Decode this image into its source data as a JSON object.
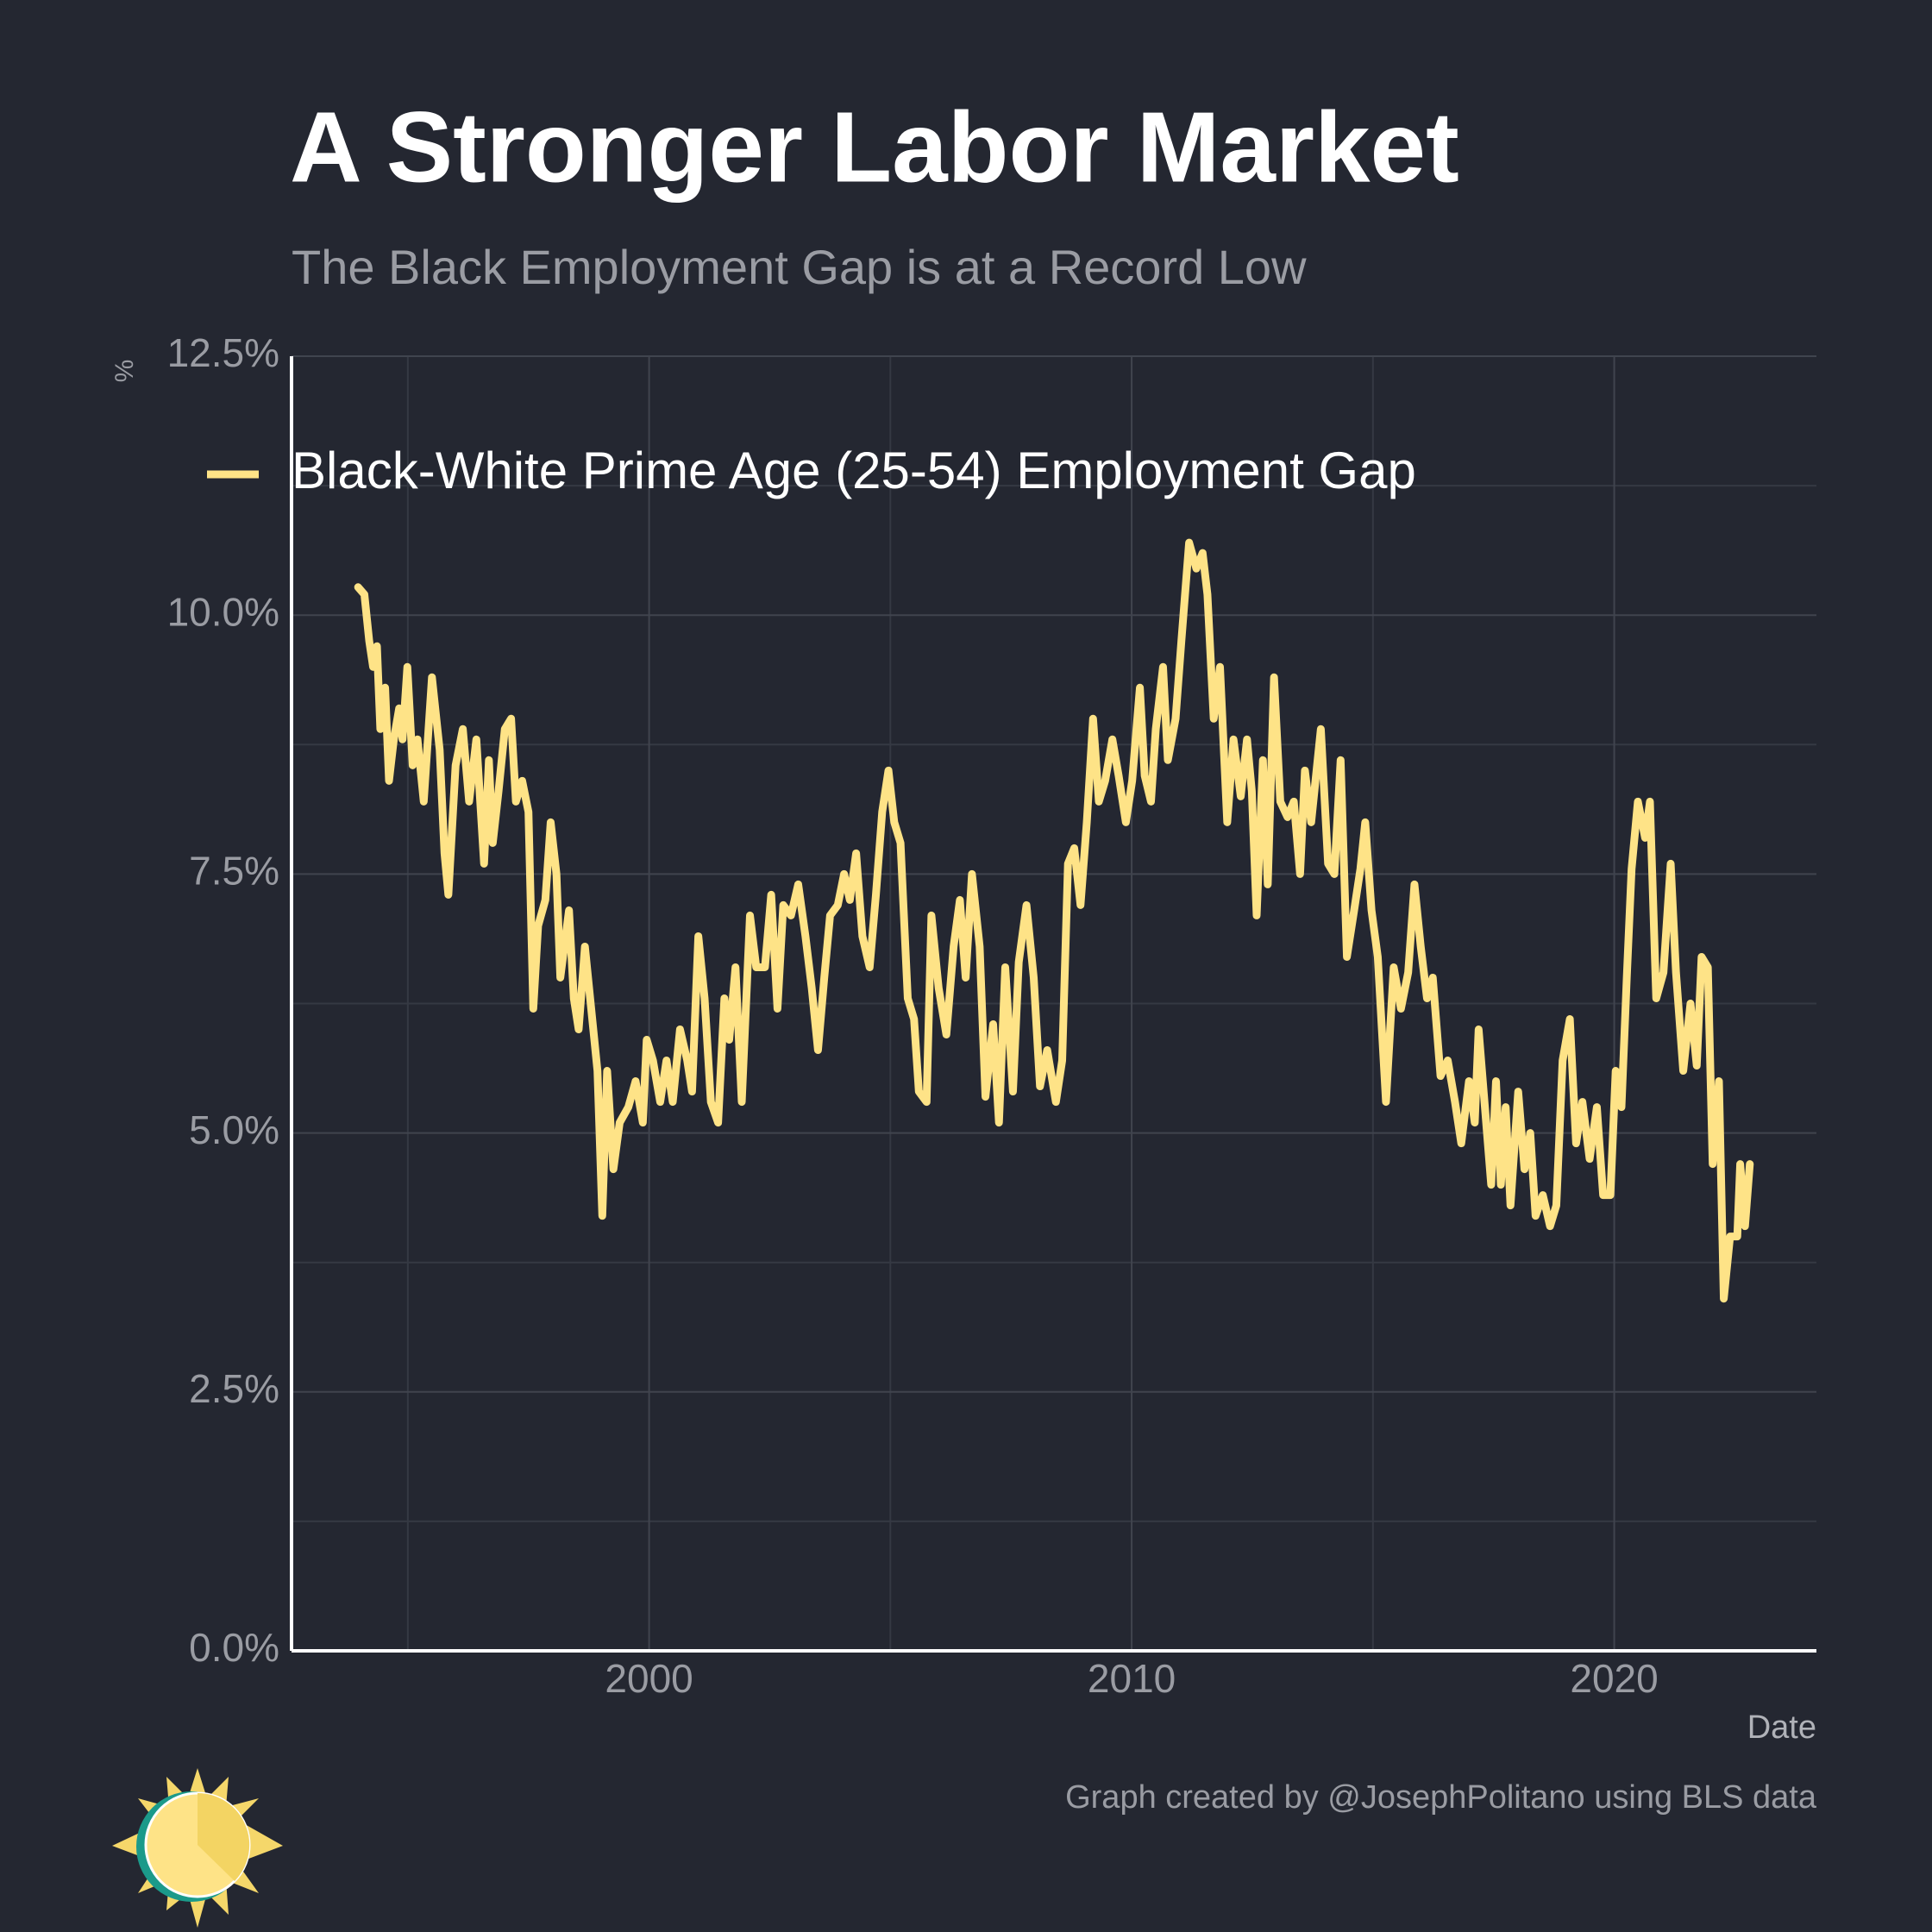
{
  "chart_data": {
    "type": "line",
    "title": "A Stronger Labor Market",
    "subtitle": "The Black Employment Gap is at a Record Low",
    "x_label": "Date",
    "y_label": "%",
    "source": "Graph created by @JosephPolitano using BLS data",
    "xlim": [
      1992.59,
      2024.19
    ],
    "xticks": [
      2000,
      2010,
      2020
    ],
    "ylim": [
      0,
      12.5
    ],
    "yticks": [
      {
        "value": 0,
        "label": "0.0%"
      },
      {
        "value": 2.5,
        "label": "2.5%"
      },
      {
        "value": 5,
        "label": "5.0%"
      },
      {
        "value": 7.5,
        "label": "7.5%"
      },
      {
        "value": 10,
        "label": "10.0%"
      },
      {
        "value": 12.5,
        "label": "12.5%"
      }
    ],
    "grid": true,
    "legend": "top-left",
    "x": [
      1993.97,
      1994.1,
      1994.2,
      1994.28,
      1994.36,
      1994.43,
      1994.53,
      1994.61,
      1994.71,
      1994.82,
      1994.89,
      1994.99,
      1995.1,
      1995.2,
      1995.33,
      1995.5,
      1995.66,
      1995.76,
      1995.84,
      1995.99,
      1996.14,
      1996.27,
      1996.42,
      1996.58,
      1996.68,
      1996.76,
      1996.88,
      1997.01,
      1997.14,
      1997.24,
      1997.37,
      1997.5,
      1997.6,
      1997.7,
      1997.85,
      1997.96,
      1998.08,
      1998.16,
      1998.34,
      1998.44,
      1998.54,
      1998.67,
      1998.8,
      1998.93,
      1999.03,
      1999.13,
      1999.26,
      1999.39,
      1999.57,
      1999.72,
      1999.87,
      1999.95,
      2000.08,
      2000.23,
      2000.36,
      2000.49,
      2000.64,
      2000.79,
      2000.89,
      2001.02,
      2001.15,
      2001.28,
      2001.43,
      2001.56,
      2001.66,
      2001.79,
      2001.92,
      2002.09,
      2002.22,
      2002.4,
      2002.53,
      2002.66,
      2002.78,
      2002.94,
      2003.09,
      2003.24,
      2003.37,
      2003.5,
      2003.63,
      2003.75,
      2003.91,
      2004.04,
      2004.16,
      2004.29,
      2004.42,
      2004.57,
      2004.7,
      2004.83,
      2004.96,
      2005.08,
      2005.21,
      2005.36,
      2005.49,
      2005.59,
      2005.75,
      2005.85,
      2006.0,
      2006.16,
      2006.31,
      2006.44,
      2006.56,
      2006.69,
      2006.85,
      2006.97,
      2007.13,
      2007.25,
      2007.38,
      2007.54,
      2007.66,
      2007.82,
      2007.97,
      2008.1,
      2008.25,
      2008.43,
      2008.56,
      2008.68,
      2008.81,
      2008.94,
      2009.07,
      2009.2,
      2009.32,
      2009.45,
      2009.6,
      2009.73,
      2009.88,
      2010.01,
      2010.17,
      2010.27,
      2010.4,
      2010.5,
      2010.65,
      2010.75,
      2010.91,
      2011.03,
      2011.19,
      2011.34,
      2011.47,
      2011.57,
      2011.7,
      2011.83,
      2011.98,
      2012.11,
      2012.26,
      2012.39,
      2012.49,
      2012.59,
      2012.72,
      2012.82,
      2012.95,
      2013.08,
      2013.23,
      2013.36,
      2013.49,
      2013.59,
      2013.72,
      2013.92,
      2014.07,
      2014.2,
      2014.33,
      2014.46,
      2014.61,
      2014.74,
      2014.84,
      2014.97,
      2015.1,
      2015.27,
      2015.43,
      2015.58,
      2015.73,
      2015.86,
      2015.99,
      2016.12,
      2016.24,
      2016.4,
      2016.55,
      2016.7,
      2016.83,
      2016.99,
      2017.11,
      2017.19,
      2017.32,
      2017.45,
      2017.55,
      2017.65,
      2017.75,
      2017.85,
      2018.01,
      2018.14,
      2018.26,
      2018.37,
      2018.52,
      2018.67,
      2018.8,
      2018.93,
      2019.08,
      2019.21,
      2019.34,
      2019.49,
      2019.64,
      2019.77,
      2019.92,
      2020.03,
      2020.15,
      2020.26,
      2020.36,
      2020.49,
      2020.64,
      2020.74,
      2020.87,
      2021.02,
      2021.17,
      2021.28,
      2021.43,
      2021.58,
      2021.71,
      2021.81,
      2021.94,
      2022.04,
      2022.17,
      2022.27,
      2022.4,
      2022.55,
      2022.61,
      2022.71,
      2022.81
    ],
    "series": [
      {
        "name": "Black-White Prime Age (25-54) Employment Gap",
        "color": "#fee387",
        "values": [
          10.27,
          10.2,
          9.75,
          9.5,
          9.7,
          8.9,
          9.3,
          8.4,
          8.8,
          9.1,
          8.8,
          9.5,
          8.55,
          8.8,
          8.2,
          9.4,
          8.7,
          7.7,
          7.3,
          8.55,
          8.9,
          8.2,
          8.8,
          7.6,
          8.6,
          7.8,
          8.3,
          8.9,
          9.0,
          8.2,
          8.4,
          8.1,
          6.2,
          7.0,
          7.25,
          8.0,
          7.5,
          6.5,
          7.15,
          6.3,
          6.0,
          6.8,
          6.2,
          5.6,
          4.2,
          5.6,
          4.65,
          5.1,
          5.25,
          5.5,
          5.1,
          5.9,
          5.7,
          5.3,
          5.7,
          5.3,
          6.0,
          5.7,
          5.4,
          6.9,
          6.3,
          5.3,
          5.1,
          6.3,
          5.9,
          6.6,
          5.3,
          7.1,
          6.6,
          6.6,
          7.3,
          6.2,
          7.2,
          7.1,
          7.4,
          6.9,
          6.4,
          5.8,
          6.5,
          7.1,
          7.2,
          7.5,
          7.25,
          7.7,
          6.9,
          6.6,
          7.3,
          8.1,
          8.5,
          8.0,
          7.8,
          6.3,
          6.1,
          5.4,
          5.3,
          7.1,
          6.4,
          5.95,
          6.8,
          7.25,
          6.5,
          7.5,
          6.8,
          5.35,
          6.05,
          5.1,
          6.6,
          5.4,
          6.65,
          7.2,
          6.5,
          5.45,
          5.8,
          5.3,
          5.7,
          7.6,
          7.75,
          7.2,
          8.0,
          9.0,
          8.2,
          8.4,
          8.8,
          8.45,
          8.0,
          8.4,
          9.3,
          8.45,
          8.2,
          8.9,
          9.5,
          8.6,
          9.0,
          9.75,
          10.7,
          10.45,
          10.6,
          10.2,
          9.0,
          9.5,
          8.0,
          8.8,
          8.25,
          8.8,
          8.3,
          7.1,
          8.6,
          7.4,
          9.4,
          8.2,
          8.05,
          8.2,
          7.5,
          8.5,
          8.0,
          8.9,
          7.6,
          7.5,
          8.6,
          6.7,
          7.15,
          7.55,
          8.0,
          7.15,
          6.7,
          5.3,
          6.6,
          6.2,
          6.55,
          7.4,
          6.8,
          6.3,
          6.5,
          5.55,
          5.7,
          5.3,
          4.9,
          5.5,
          5.1,
          6.0,
          5.25,
          4.5,
          5.5,
          4.5,
          5.25,
          4.3,
          5.4,
          4.65,
          5.0,
          4.2,
          4.4,
          4.1,
          4.3,
          5.7,
          6.1,
          4.9,
          5.3,
          4.75,
          5.25,
          4.4,
          4.4,
          5.6,
          5.25,
          6.5,
          7.55,
          8.2,
          7.85,
          8.2,
          6.3,
          6.55,
          7.6,
          6.55,
          5.6,
          6.25,
          5.65,
          6.7,
          6.6,
          4.7,
          5.5,
          3.4,
          4.0,
          4.0,
          4.7,
          4.1,
          4.7
        ]
      }
    ]
  }
}
